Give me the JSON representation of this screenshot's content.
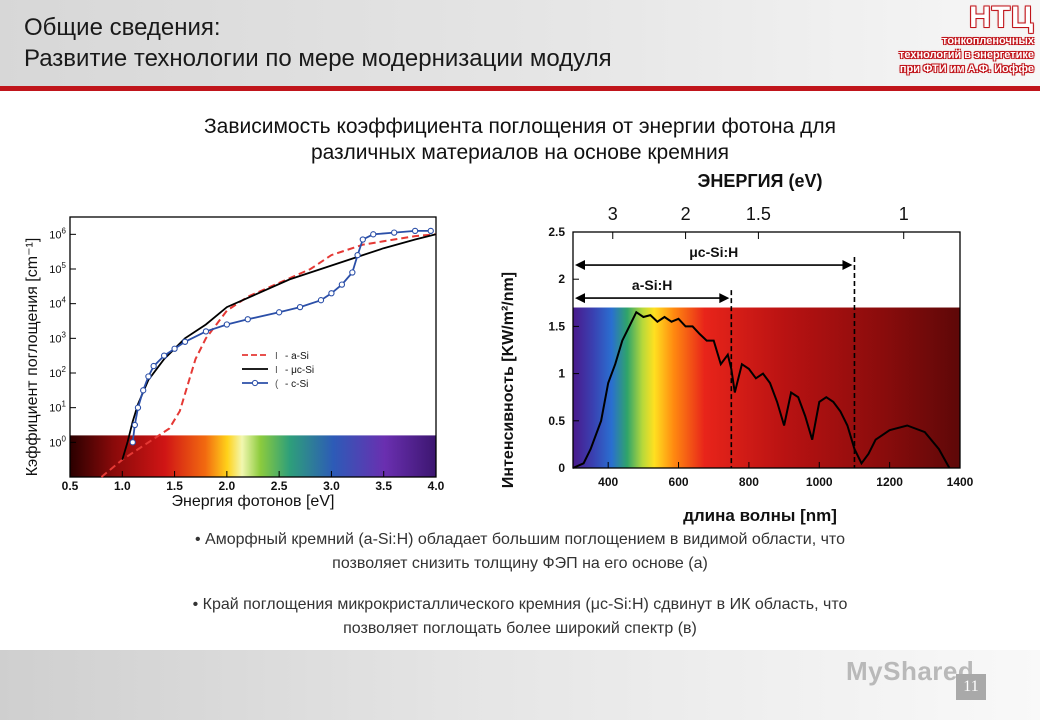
{
  "header": {
    "title_line1": "Общие сведения:",
    "title_line2": "Развитие технологии по мере модернизации модуля"
  },
  "logo": {
    "abbr": "НТЦ",
    "line1": "тонкопленочных",
    "line2": "технологий в энергетике",
    "line3": "при ФТИ им А.Ф. Иоффе",
    "accent_color": "#c0151b"
  },
  "slide": {
    "heading_line1": "Зависимость коэффициента поглощения от энергии фотона для",
    "heading_line2": "различных материалов на основе кремния"
  },
  "bullets": [
    {
      "line1": "• Аморфный кремний (a-Si:H) обладает большим поглощением в видимой области, что",
      "line2": "позволяет снизить толщину ФЭП на его основе (a)"
    },
    {
      "line1": "• Край поглощения микрокристаллического кремния (μc-Si:H) сдвинут в ИК область, что",
      "line2": "позволяет поглощать более широкий спектр (в)"
    }
  ],
  "footer": {
    "watermark": "MyShared",
    "page_number": "11"
  },
  "chart_data": [
    {
      "type": "line",
      "xlabel": "Энергия фотонов [eV]",
      "ylabel": "Кэффициент поглощения [cm⁻¹]",
      "xlim": [
        0.5,
        4.0
      ],
      "ylim_log10": [
        -1,
        6.5
      ],
      "log_y": true,
      "x_ticks": [
        "0.5",
        "1.0",
        "1.5",
        "2.0",
        "2.5",
        "3.0",
        "3.5",
        "4.0"
      ],
      "y_ticks": [
        {
          "base": "10",
          "exp": "0"
        },
        {
          "base": "10",
          "exp": "1"
        },
        {
          "base": "10",
          "exp": "2"
        },
        {
          "base": "10",
          "exp": "3"
        },
        {
          "base": "10",
          "exp": "4"
        },
        {
          "base": "10",
          "exp": "5"
        },
        {
          "base": "10",
          "exp": "6"
        }
      ],
      "legend_position": "right",
      "series": [
        {
          "name": "a-Si",
          "color": "#e53935",
          "style": "dashed",
          "points": [
            [
              0.8,
              -1
            ],
            [
              1.0,
              -0.5
            ],
            [
              1.2,
              -0.1
            ],
            [
              1.3,
              0.1
            ],
            [
              1.45,
              0.4
            ],
            [
              1.55,
              0.9
            ],
            [
              1.62,
              1.6
            ],
            [
              1.7,
              2.4
            ],
            [
              1.8,
              3.0
            ],
            [
              1.9,
              3.4
            ],
            [
              2.0,
              3.8
            ],
            [
              2.2,
              4.2
            ],
            [
              2.5,
              4.6
            ],
            [
              2.8,
              5.0
            ],
            [
              3.0,
              5.4
            ],
            [
              3.3,
              5.7
            ],
            [
              3.6,
              5.85
            ],
            [
              3.8,
              5.95
            ],
            [
              4.0,
              6.0
            ]
          ]
        },
        {
          "name": "μc-Si",
          "color": "#000000",
          "style": "solid",
          "points": [
            [
              1.0,
              -0.5
            ],
            [
              1.05,
              0.0
            ],
            [
              1.1,
              0.6
            ],
            [
              1.15,
              1.1
            ],
            [
              1.25,
              1.8
            ],
            [
              1.4,
              2.4
            ],
            [
              1.6,
              3.0
            ],
            [
              1.8,
              3.4
            ],
            [
              2.0,
              3.9
            ],
            [
              2.3,
              4.3
            ],
            [
              2.6,
              4.7
            ],
            [
              2.9,
              5.0
            ],
            [
              3.2,
              5.3
            ],
            [
              3.5,
              5.6
            ],
            [
              3.8,
              5.85
            ],
            [
              4.0,
              6.0
            ]
          ]
        },
        {
          "name": "c-Si",
          "color": "#2b4fa8",
          "style": "circles",
          "points": [
            [
              1.1,
              0.0
            ],
            [
              1.12,
              0.5
            ],
            [
              1.15,
              1.0
            ],
            [
              1.2,
              1.5
            ],
            [
              1.25,
              1.9
            ],
            [
              1.3,
              2.2
            ],
            [
              1.4,
              2.5
            ],
            [
              1.5,
              2.7
            ],
            [
              1.6,
              2.9
            ],
            [
              1.8,
              3.2
            ],
            [
              2.0,
              3.4
            ],
            [
              2.2,
              3.55
            ],
            [
              2.5,
              3.75
            ],
            [
              2.7,
              3.9
            ],
            [
              2.9,
              4.1
            ],
            [
              3.0,
              4.3
            ],
            [
              3.1,
              4.55
            ],
            [
              3.2,
              4.9
            ],
            [
              3.25,
              5.4
            ],
            [
              3.3,
              5.85
            ],
            [
              3.4,
              6.0
            ],
            [
              3.6,
              6.05
            ],
            [
              3.8,
              6.1
            ],
            [
              3.95,
              6.1
            ]
          ]
        }
      ],
      "legend_marks": [
        "I",
        "I",
        "("
      ]
    },
    {
      "type": "area",
      "title": "ЭНЕРГИЯ (eV)",
      "xlabel": "длина волны [nm]",
      "ylabel": "Интенсивность [KW/m²/nm]",
      "xlim": [
        300,
        1400
      ],
      "ylim": [
        0,
        2.5
      ],
      "x_ticks": [
        "400",
        "600",
        "800",
        "1000",
        "1200",
        "1400"
      ],
      "y_ticks": [
        "0",
        "0.5",
        "1",
        "1.5",
        "2",
        "2.5"
      ],
      "energy_ticks": [
        {
          "label": "3",
          "nm": 413
        },
        {
          "label": "2",
          "nm": 620
        },
        {
          "label": "1.5",
          "nm": 827
        },
        {
          "label": "1",
          "nm": 1240
        }
      ],
      "markers": [
        {
          "name": "a-Si:H",
          "nm": 750,
          "arrow_y": 1.8
        },
        {
          "name": "μc-Si:H",
          "nm": 1100,
          "arrow_y": 2.15
        }
      ],
      "spectrum_points": [
        [
          300,
          0.0
        ],
        [
          330,
          0.05
        ],
        [
          350,
          0.2
        ],
        [
          380,
          0.5
        ],
        [
          400,
          0.9
        ],
        [
          420,
          1.1
        ],
        [
          440,
          1.35
        ],
        [
          460,
          1.5
        ],
        [
          480,
          1.65
        ],
        [
          500,
          1.6
        ],
        [
          520,
          1.62
        ],
        [
          540,
          1.55
        ],
        [
          560,
          1.6
        ],
        [
          580,
          1.55
        ],
        [
          600,
          1.58
        ],
        [
          620,
          1.5
        ],
        [
          640,
          1.5
        ],
        [
          660,
          1.42
        ],
        [
          680,
          1.35
        ],
        [
          700,
          1.35
        ],
        [
          720,
          1.1
        ],
        [
          740,
          1.2
        ],
        [
          750,
          1.05
        ],
        [
          760,
          0.8
        ],
        [
          780,
          1.1
        ],
        [
          800,
          1.05
        ],
        [
          820,
          0.95
        ],
        [
          840,
          1.0
        ],
        [
          860,
          0.9
        ],
        [
          880,
          0.7
        ],
        [
          900,
          0.45
        ],
        [
          920,
          0.8
        ],
        [
          940,
          0.75
        ],
        [
          960,
          0.55
        ],
        [
          980,
          0.3
        ],
        [
          1000,
          0.7
        ],
        [
          1020,
          0.75
        ],
        [
          1040,
          0.7
        ],
        [
          1060,
          0.6
        ],
        [
          1080,
          0.45
        ],
        [
          1100,
          0.2
        ],
        [
          1120,
          0.05
        ],
        [
          1140,
          0.15
        ],
        [
          1160,
          0.3
        ],
        [
          1200,
          0.4
        ],
        [
          1250,
          0.45
        ],
        [
          1300,
          0.38
        ],
        [
          1340,
          0.2
        ],
        [
          1370,
          0.0
        ]
      ]
    }
  ]
}
